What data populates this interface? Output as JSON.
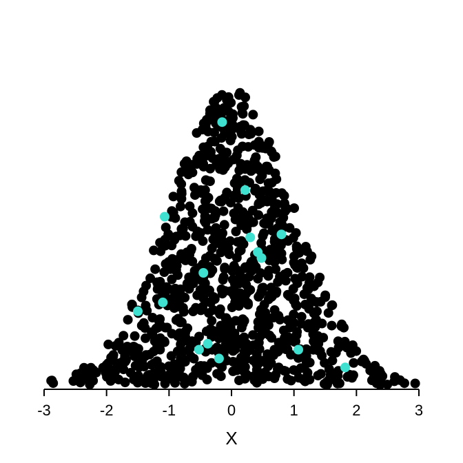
{
  "chart_data": {
    "type": "scatter",
    "title": "",
    "xlabel": "X",
    "ylabel": "",
    "xlim": [
      -3,
      3
    ],
    "xticks": [
      -3,
      -2,
      -1,
      0,
      1,
      2,
      3
    ],
    "xtick_labels": [
      "-3",
      "-2",
      "-1",
      "0",
      "1",
      "2",
      "3"
    ],
    "grid": false,
    "legend": "none",
    "description": "Normal-distribution dot-stack (swarm) of points; y axis has no scale.",
    "series": [
      {
        "name": "",
        "color": "#000000",
        "count": 1000,
        "distribution": "normal",
        "mean": 0,
        "sd": 1
      },
      {
        "name": "",
        "color": "#40e0d0",
        "points": [
          {
            "x": -0.15,
            "y": 0.89
          },
          {
            "x": 0.22,
            "y": 0.66
          },
          {
            "x": -1.07,
            "y": 0.57
          },
          {
            "x": 0.8,
            "y": 0.51
          },
          {
            "x": 0.3,
            "y": 0.5
          },
          {
            "x": 0.42,
            "y": 0.45
          },
          {
            "x": 0.48,
            "y": 0.43
          },
          {
            "x": -0.45,
            "y": 0.38
          },
          {
            "x": -1.1,
            "y": 0.28
          },
          {
            "x": -1.5,
            "y": 0.25
          },
          {
            "x": -0.38,
            "y": 0.14
          },
          {
            "x": -0.52,
            "y": 0.12
          },
          {
            "x": 1.07,
            "y": 0.12
          },
          {
            "x": -0.2,
            "y": 0.09
          },
          {
            "x": 1.82,
            "y": 0.06
          }
        ]
      }
    ]
  }
}
